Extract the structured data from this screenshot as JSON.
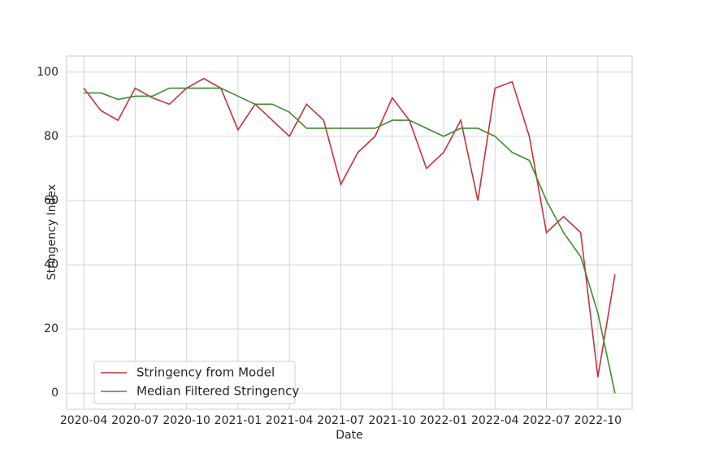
{
  "chart_data": {
    "type": "line",
    "x_label": "Date",
    "y_label": "Stringency Index",
    "x": [
      "2020-04",
      "2020-05",
      "2020-06",
      "2020-07",
      "2020-08",
      "2020-09",
      "2020-10",
      "2020-11",
      "2020-12",
      "2021-01",
      "2021-02",
      "2021-03",
      "2021-04",
      "2021-05",
      "2021-06",
      "2021-07",
      "2021-08",
      "2021-09",
      "2021-10",
      "2021-11",
      "2021-12",
      "2022-01",
      "2022-02",
      "2022-03",
      "2022-04",
      "2022-05",
      "2022-06",
      "2022-07",
      "2022-08",
      "2022-09",
      "2022-10",
      "2022-11"
    ],
    "series": [
      {
        "name": "Stringency from Model",
        "color": "#c4323c",
        "values": [
          95,
          88,
          85,
          95,
          92,
          90,
          95,
          98,
          95,
          82,
          90,
          85,
          80,
          90,
          85,
          65,
          75,
          80,
          92,
          85,
          70,
          75,
          85,
          60,
          95,
          97,
          80,
          50,
          55,
          50,
          5,
          37
        ]
      },
      {
        "name": "Median Filtered Stringency",
        "color": "#3e8c2e",
        "values": [
          93.5,
          93.5,
          91.5,
          92.5,
          92.5,
          95,
          95,
          95,
          95,
          92.5,
          90,
          90,
          87.5,
          82.5,
          82.5,
          82.5,
          82.5,
          82.5,
          85,
          85,
          82.5,
          80,
          82.5,
          82.5,
          80,
          75,
          72.5,
          60,
          50,
          42.5,
          25,
          0
        ]
      }
    ],
    "xlim": [
      "2020-03",
      "2022-12"
    ],
    "xticks": [
      "2020-04",
      "2020-07",
      "2020-10",
      "2021-01",
      "2021-04",
      "2021-07",
      "2021-10",
      "2022-01",
      "2022-04",
      "2022-07",
      "2022-10"
    ],
    "ylim": [
      -5,
      105
    ],
    "yticks": [
      0,
      20,
      40,
      60,
      80,
      100
    ],
    "grid": true,
    "legend": "lower left"
  }
}
